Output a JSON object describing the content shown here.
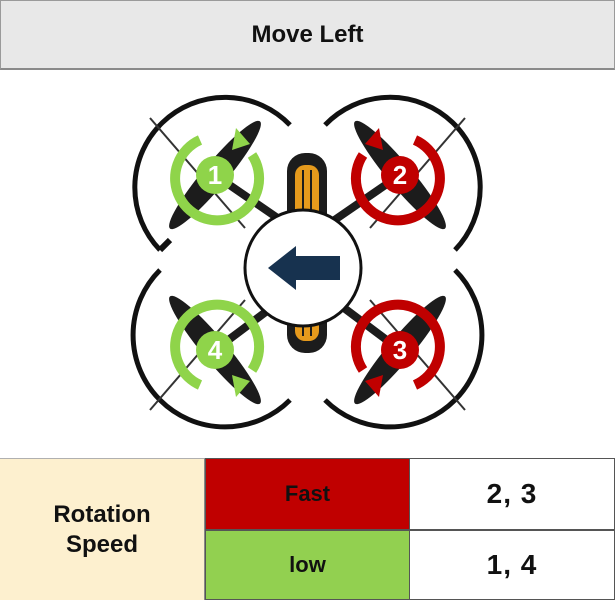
{
  "title": "Move Left",
  "motors": [
    {
      "number": "1",
      "direction": "clockwise",
      "speed": "low"
    },
    {
      "number": "2",
      "direction": "counterclockwise",
      "speed": "fast"
    },
    {
      "number": "3",
      "direction": "clockwise",
      "speed": "fast"
    },
    {
      "number": "4",
      "direction": "counterclockwise",
      "speed": "low"
    }
  ],
  "center_icon": "arrow-left-icon",
  "table": {
    "label": "Rotation Speed",
    "fast_label": "Fast",
    "fast_motors": "2, 3",
    "low_label": "low",
    "low_motors": "1, 4"
  },
  "colors": {
    "fast": "#c00000",
    "low": "#92d050",
    "low_ring": "#8fd44a",
    "arrow": "#17324f",
    "label_bg": "#fdf0cf"
  }
}
